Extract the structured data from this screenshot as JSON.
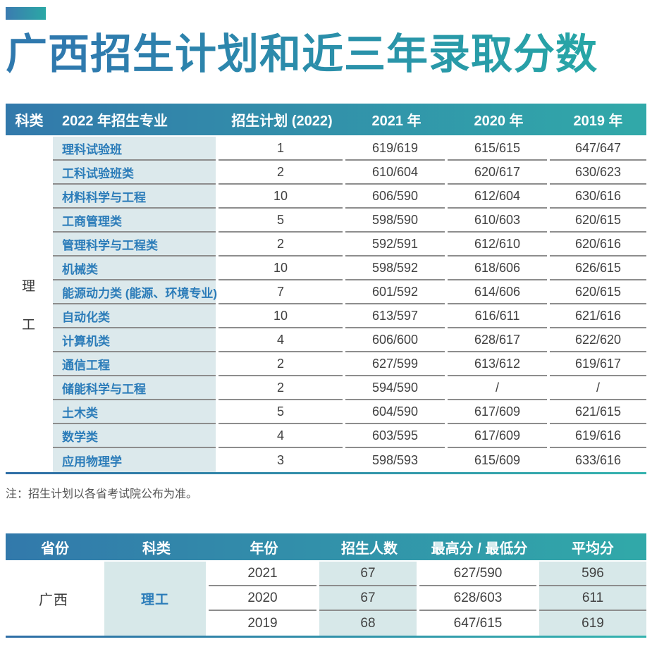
{
  "title": "广西招生计划和近三年录取分数",
  "colors": {
    "header_gradient_start": "#3279ab",
    "header_gradient_end": "#31a9a9",
    "title_gradient_start": "#2f79ae",
    "title_gradient_end": "#26a8a6",
    "major_text_blue": "#2b7cb9",
    "table1_light_bg": "#dce9ec",
    "table2_light_bg": "#d7e8e9",
    "separator_gray": "#8d8d8d"
  },
  "table1": {
    "headers": [
      "科类",
      "2022 年招生专业",
      "招生计划 (2022)",
      "2021 年",
      "2020 年",
      "2019 年"
    ],
    "category_chars": [
      "理",
      "工"
    ],
    "rows": [
      {
        "major": "理科试验班",
        "plan": "1",
        "y2021": "619/619",
        "y2020": "615/615",
        "y2019": "647/647"
      },
      {
        "major": "工科试验班类",
        "plan": "2",
        "y2021": "610/604",
        "y2020": "620/617",
        "y2019": "630/623"
      },
      {
        "major": "材料科学与工程",
        "plan": "10",
        "y2021": "606/590",
        "y2020": "612/604",
        "y2019": "630/616"
      },
      {
        "major": "工商管理类",
        "plan": "5",
        "y2021": "598/590",
        "y2020": "610/603",
        "y2019": "620/615"
      },
      {
        "major": "管理科学与工程类",
        "plan": "2",
        "y2021": "592/591",
        "y2020": "612/610",
        "y2019": "620/616"
      },
      {
        "major": "机械类",
        "plan": "10",
        "y2021": "598/592",
        "y2020": "618/606",
        "y2019": "626/615"
      },
      {
        "major": "能源动力类 (能源、环境专业)",
        "plan": "7",
        "y2021": "601/592",
        "y2020": "614/606",
        "y2019": "620/615"
      },
      {
        "major": "自动化类",
        "plan": "10",
        "y2021": "613/597",
        "y2020": "616/611",
        "y2019": "621/616"
      },
      {
        "major": "计算机类",
        "plan": "4",
        "y2021": "606/600",
        "y2020": "628/617",
        "y2019": "622/620"
      },
      {
        "major": "通信工程",
        "plan": "2",
        "y2021": "627/599",
        "y2020": "613/612",
        "y2019": "619/617"
      },
      {
        "major": "储能科学与工程",
        "plan": "2",
        "y2021": "594/590",
        "y2020": "/",
        "y2019": "/"
      },
      {
        "major": "土木类",
        "plan": "5",
        "y2021": "604/590",
        "y2020": "617/609",
        "y2019": "621/615"
      },
      {
        "major": "数学类",
        "plan": "4",
        "y2021": "603/595",
        "y2020": "617/609",
        "y2019": "619/616"
      },
      {
        "major": "应用物理学",
        "plan": "3",
        "y2021": "598/593",
        "y2020": "615/609",
        "y2019": "633/616"
      }
    ],
    "note": "注：招生计划以各省考试院公布为准。"
  },
  "table2": {
    "headers": [
      "省份",
      "科类",
      "年份",
      "招生人数",
      "最高分 / 最低分",
      "平均分"
    ],
    "province": "广西",
    "category": "理工",
    "rows": [
      {
        "year": "2021",
        "count": "67",
        "range": "627/590",
        "avg": "596"
      },
      {
        "year": "2020",
        "count": "67",
        "range": "628/603",
        "avg": "611"
      },
      {
        "year": "2019",
        "count": "68",
        "range": "647/615",
        "avg": "619"
      }
    ]
  }
}
